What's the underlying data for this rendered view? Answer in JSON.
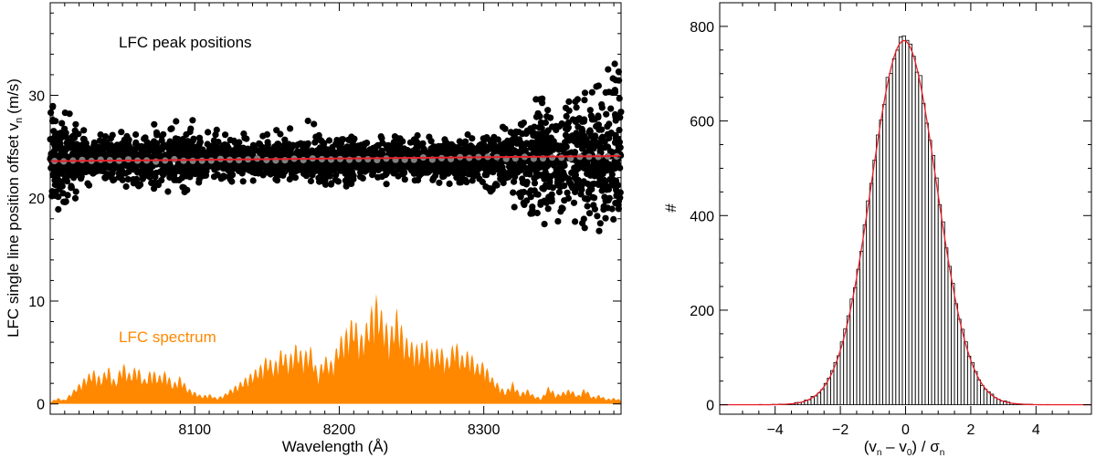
{
  "chart_data": [
    {
      "type": "scatter",
      "xlabel": "Wavelength (Å)",
      "ylabel": "LFC single line position offset v",
      "ylabel_subscript": "n",
      "ylabel_unit": "(m/s)",
      "xlim": [
        8000,
        8395
      ],
      "ylim": [
        -1,
        39
      ],
      "x_ticks": [
        8100,
        8200,
        8300
      ],
      "x_tick_labels": [
        "8100",
        "8200",
        "8300"
      ],
      "y_ticks": [
        0,
        10,
        20,
        30
      ],
      "y_tick_labels": [
        "0",
        "10",
        "20",
        "30"
      ],
      "grid": false,
      "annotations": [
        {
          "text": "LFC peak positions",
          "color": "#000000"
        },
        {
          "text": "LFC spectrum",
          "color": "#ff8800"
        }
      ],
      "colors": {
        "points": "#000000",
        "binned": "#808080",
        "fit": "#e8202a",
        "spectrum": "#ff8800"
      },
      "peak_offset_envelope": {
        "x": [
          8000,
          8010,
          8030,
          8060,
          8090,
          8120,
          8150,
          8180,
          8210,
          8240,
          8270,
          8300,
          8320,
          8340,
          8360,
          8380,
          8395
        ],
        "y_low": [
          16,
          19,
          21.5,
          21,
          20.5,
          21.5,
          21.8,
          21.5,
          21,
          21.5,
          21.5,
          21,
          19,
          17,
          18,
          16,
          14
        ],
        "y_high": [
          31,
          29,
          26.5,
          26.5,
          29,
          26.2,
          26.5,
          28,
          26,
          26,
          26.5,
          26,
          28,
          30,
          29.5,
          31,
          35
        ],
        "center": 23.7
      },
      "binned_mean": {
        "x_start": 8003,
        "x_end": 8392,
        "y_start": 23.6,
        "y_end": 24.0
      },
      "fit_line": {
        "x": [
          8000,
          8395
        ],
        "y": [
          23.6,
          24.1
        ]
      },
      "lfc_spectrum": {
        "x": [
          8000,
          8005,
          8010,
          8015,
          8020,
          8025,
          8030,
          8035,
          8040,
          8045,
          8050,
          8055,
          8060,
          8065,
          8070,
          8075,
          8080,
          8085,
          8090,
          8095,
          8100,
          8105,
          8110,
          8115,
          8120,
          8125,
          8130,
          8135,
          8140,
          8145,
          8150,
          8155,
          8160,
          8165,
          8170,
          8175,
          8180,
          8185,
          8190,
          8195,
          8200,
          8205,
          8210,
          8215,
          8220,
          8225,
          8230,
          8235,
          8240,
          8245,
          8250,
          8255,
          8260,
          8265,
          8270,
          8275,
          8280,
          8285,
          8290,
          8295,
          8300,
          8305,
          8310,
          8315,
          8320,
          8325,
          8330,
          8335,
          8340,
          8345,
          8350,
          8355,
          8360,
          8365,
          8370,
          8375,
          8380,
          8385,
          8390,
          8395
        ],
        "y": [
          0.2,
          0.6,
          0.4,
          1.2,
          2.0,
          2.8,
          3.4,
          2.6,
          3.8,
          2.2,
          4.2,
          3.0,
          3.9,
          2.4,
          3.5,
          2.8,
          3.3,
          2.0,
          2.8,
          1.6,
          1.2,
          0.8,
          1.0,
          0.6,
          0.9,
          1.5,
          2.0,
          2.6,
          3.2,
          3.8,
          4.8,
          4.0,
          5.5,
          4.6,
          6.0,
          5.0,
          5.8,
          3.2,
          4.8,
          4.2,
          6.5,
          7.5,
          8.8,
          6.8,
          8.5,
          11.0,
          9.0,
          7.2,
          9.5,
          6.8,
          6.2,
          5.8,
          6.5,
          5.2,
          5.8,
          4.5,
          6.5,
          4.8,
          5.4,
          4.0,
          4.2,
          2.8,
          2.0,
          1.2,
          2.2,
          1.0,
          1.5,
          0.8,
          0.6,
          1.8,
          0.9,
          1.2,
          1.5,
          0.8,
          1.6,
          0.7,
          0.9,
          0.5,
          0.6,
          0.4
        ]
      }
    },
    {
      "type": "bar",
      "subtype": "histogram",
      "xlabel_parts": {
        "a": "(v",
        "a_sub": "n",
        "b": " – v",
        "b_sub": "0",
        "c": ") / σ",
        "c_sub": "n"
      },
      "ylabel": "#",
      "xlim": [
        -5.7,
        5.7
      ],
      "ylim": [
        -20,
        850
      ],
      "x_ticks": [
        -4,
        -2,
        0,
        2,
        4
      ],
      "x_tick_labels": [
        "−4",
        "−2",
        "0",
        "2",
        "4"
      ],
      "y_ticks": [
        0,
        200,
        400,
        600,
        800
      ],
      "y_tick_labels": [
        "0",
        "200",
        "400",
        "600",
        "800"
      ],
      "grid": false,
      "bin_width": 0.1,
      "bin_start": -5.0,
      "bin_end": 5.0,
      "gaussian_fit": {
        "amplitude": 770,
        "mu": -0.05,
        "sigma": 1.0
      },
      "histogram_peak": {
        "x": -0.05,
        "value": 780
      },
      "colors": {
        "bars": "#000000",
        "fit": "#e8202a"
      }
    }
  ]
}
